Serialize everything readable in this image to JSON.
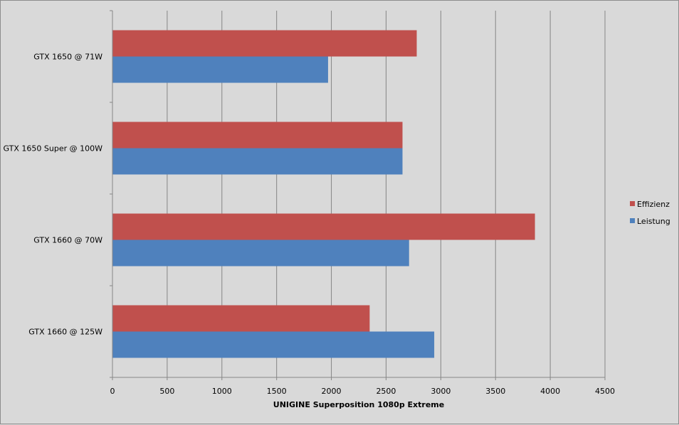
{
  "chart_data": {
    "type": "bar",
    "orientation": "horizontal",
    "title": "",
    "xlabel": "UNIGINE  Superposition  1080p Extreme",
    "ylabel": "",
    "categories": [
      "GTX 1650 @ 71W",
      "GTX 1650 Super @ 100W",
      "GTX 1660 @ 70W",
      "GTX 1660 @ 125W"
    ],
    "series": [
      {
        "name": "Effizienz",
        "color": "#c0504d",
        "values": [
          2780,
          2650,
          3860,
          2350
        ]
      },
      {
        "name": "Leistung",
        "color": "#4f81bd",
        "values": [
          1970,
          2650,
          2710,
          2940
        ]
      }
    ],
    "xlim": [
      0,
      4500
    ],
    "x_ticks": [
      "0",
      "500",
      "1000",
      "1500",
      "2000",
      "2500",
      "3000",
      "3500",
      "4000",
      "4500"
    ],
    "grid": "vertical",
    "legend_position": "right"
  }
}
